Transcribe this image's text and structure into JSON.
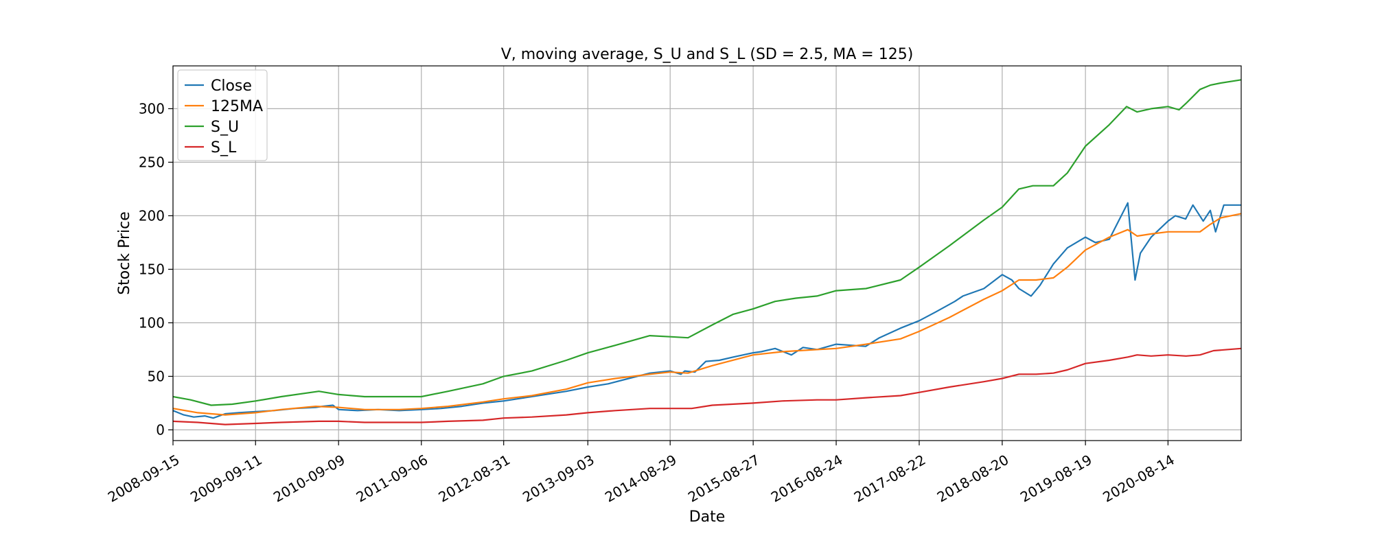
{
  "chart_data": {
    "type": "line",
    "title": "V, moving average, S_U and S_L (SD = 2.5, MA = 125)",
    "xlabel": "Date",
    "ylabel": "Stock Price",
    "xlim": [
      "2008-09-15",
      "2021-06-30"
    ],
    "ylim": [
      -10,
      340
    ],
    "grid": true,
    "legend_position": "upper-left",
    "x_ticks": [
      "2008-09-15",
      "2009-09-11",
      "2010-09-09",
      "2011-09-06",
      "2012-08-31",
      "2013-09-03",
      "2014-08-29",
      "2015-08-27",
      "2016-08-24",
      "2017-08-22",
      "2018-08-20",
      "2019-08-19",
      "2020-08-14"
    ],
    "y_ticks": [
      0,
      50,
      100,
      150,
      200,
      250,
      300
    ],
    "series": [
      {
        "name": "Close",
        "color": "#1f77b4",
        "x": [
          "2008-09-15",
          "2008-11-01",
          "2008-12-15",
          "2009-02-01",
          "2009-03-10",
          "2009-05-01",
          "2009-07-01",
          "2009-09-11",
          "2009-12-01",
          "2010-03-01",
          "2010-06-01",
          "2010-07-01",
          "2010-08-15",
          "2010-09-09",
          "2010-12-01",
          "2011-03-01",
          "2011-06-01",
          "2011-09-06",
          "2011-12-01",
          "2012-03-01",
          "2012-06-01",
          "2012-08-31",
          "2012-12-01",
          "2013-03-01",
          "2013-06-01",
          "2013-09-03",
          "2013-12-01",
          "2014-03-01",
          "2014-06-01",
          "2014-08-29",
          "2014-10-15",
          "2014-11-01",
          "2014-12-15",
          "2015-02-01",
          "2015-04-01",
          "2015-06-01",
          "2015-08-27",
          "2015-10-01",
          "2015-12-01",
          "2016-02-10",
          "2016-04-01",
          "2016-06-01",
          "2016-08-24",
          "2016-11-01",
          "2016-12-31",
          "2017-03-01",
          "2017-06-01",
          "2017-08-22",
          "2017-11-01",
          "2018-01-25",
          "2018-03-01",
          "2018-06-01",
          "2018-08-20",
          "2018-10-01",
          "2018-11-01",
          "2018-12-24",
          "2019-02-01",
          "2019-04-01",
          "2019-06-01",
          "2019-08-19",
          "2019-10-01",
          "2019-12-01",
          "2020-02-20",
          "2020-03-23",
          "2020-04-15",
          "2020-06-01",
          "2020-08-14",
          "2020-09-15",
          "2020-10-30",
          "2020-12-01",
          "2021-01-15",
          "2021-02-15",
          "2021-03-10",
          "2021-04-15",
          "2021-06-30"
        ],
        "values": [
          18,
          14,
          12,
          13,
          11,
          15,
          16,
          17,
          18,
          20,
          21,
          22,
          23,
          19,
          18,
          19,
          18,
          19,
          20,
          22,
          25,
          27,
          30,
          33,
          36,
          40,
          43,
          48,
          53,
          55,
          52,
          55,
          54,
          64,
          65,
          68,
          72,
          73,
          76,
          70,
          77,
          75,
          80,
          79,
          78,
          86,
          95,
          102,
          110,
          120,
          125,
          132,
          145,
          140,
          132,
          125,
          135,
          155,
          170,
          180,
          175,
          178,
          212,
          140,
          165,
          180,
          195,
          200,
          197,
          210,
          195,
          205,
          185,
          210,
          210
        ]
      },
      {
        "name": "125MA",
        "color": "#ff7f0e",
        "x": [
          "2008-09-15",
          "2009-01-01",
          "2009-05-01",
          "2009-09-11",
          "2010-01-01",
          "2010-06-01",
          "2010-09-09",
          "2011-01-01",
          "2011-06-01",
          "2011-09-06",
          "2012-01-01",
          "2012-06-01",
          "2012-08-31",
          "2013-01-01",
          "2013-06-01",
          "2013-09-03",
          "2014-01-01",
          "2014-06-01",
          "2014-08-29",
          "2014-11-15",
          "2015-03-01",
          "2015-08-27",
          "2016-01-01",
          "2016-06-01",
          "2016-08-24",
          "2017-01-01",
          "2017-06-01",
          "2017-08-22",
          "2018-01-01",
          "2018-06-01",
          "2018-08-20",
          "2018-11-01",
          "2019-01-15",
          "2019-04-01",
          "2019-06-01",
          "2019-08-19",
          "2019-12-01",
          "2020-02-20",
          "2020-04-01",
          "2020-06-01",
          "2020-08-14",
          "2020-11-01",
          "2021-01-01",
          "2021-02-15",
          "2021-04-01",
          "2021-06-30"
        ],
        "values": [
          20,
          16,
          14,
          16,
          19,
          22,
          21,
          19,
          19,
          20,
          22,
          26,
          29,
          32,
          38,
          44,
          48,
          52,
          54,
          53,
          60,
          70,
          73,
          75,
          76,
          80,
          85,
          92,
          105,
          122,
          130,
          140,
          140,
          142,
          152,
          168,
          180,
          187,
          181,
          183,
          185,
          185,
          185,
          192,
          198,
          202
        ]
      },
      {
        "name": "S_U",
        "color": "#2ca02c",
        "x": [
          "2008-09-15",
          "2008-12-01",
          "2009-03-01",
          "2009-06-01",
          "2009-09-11",
          "2010-01-01",
          "2010-06-15",
          "2010-09-09",
          "2011-01-01",
          "2011-06-01",
          "2011-09-06",
          "2012-01-01",
          "2012-06-01",
          "2012-08-31",
          "2013-01-01",
          "2013-06-01",
          "2013-09-03",
          "2014-01-01",
          "2014-06-01",
          "2014-08-29",
          "2014-11-15",
          "2015-03-01",
          "2015-06-01",
          "2015-08-27",
          "2015-12-01",
          "2016-03-01",
          "2016-06-01",
          "2016-08-24",
          "2017-01-01",
          "2017-06-01",
          "2017-08-22",
          "2018-01-01",
          "2018-06-01",
          "2018-08-20",
          "2018-11-01",
          "2019-01-01",
          "2019-04-01",
          "2019-06-01",
          "2019-08-19",
          "2019-12-01",
          "2020-02-15",
          "2020-04-01",
          "2020-06-01",
          "2020-08-14",
          "2020-10-01",
          "2020-11-01",
          "2021-01-01",
          "2021-02-15",
          "2021-04-01",
          "2021-06-30"
        ],
        "values": [
          31,
          28,
          23,
          24,
          27,
          31,
          36,
          33,
          31,
          31,
          31,
          36,
          43,
          50,
          55,
          65,
          72,
          79,
          88,
          87,
          86,
          98,
          108,
          113,
          120,
          123,
          125,
          130,
          132,
          140,
          152,
          172,
          196,
          208,
          225,
          228,
          228,
          240,
          265,
          285,
          302,
          297,
          300,
          302,
          299,
          305,
          318,
          322,
          324,
          327
        ]
      },
      {
        "name": "S_L",
        "color": "#d62728",
        "x": [
          "2008-09-15",
          "2009-01-01",
          "2009-05-01",
          "2009-09-11",
          "2010-01-01",
          "2010-06-15",
          "2010-09-09",
          "2011-01-01",
          "2011-06-01",
          "2011-09-06",
          "2012-01-01",
          "2012-06-01",
          "2012-08-31",
          "2013-01-01",
          "2013-06-01",
          "2013-09-03",
          "2014-01-01",
          "2014-06-01",
          "2014-08-29",
          "2014-12-01",
          "2015-03-01",
          "2015-08-27",
          "2016-01-01",
          "2016-06-01",
          "2016-08-24",
          "2017-01-01",
          "2017-06-01",
          "2017-08-22",
          "2018-01-01",
          "2018-06-01",
          "2018-08-20",
          "2018-11-01",
          "2019-01-15",
          "2019-04-01",
          "2019-06-01",
          "2019-08-19",
          "2019-12-01",
          "2020-02-20",
          "2020-04-01",
          "2020-06-01",
          "2020-08-14",
          "2020-11-01",
          "2021-01-01",
          "2021-03-01",
          "2021-06-30"
        ],
        "values": [
          8,
          7,
          5,
          6,
          7,
          8,
          8,
          7,
          7,
          7,
          8,
          9,
          11,
          12,
          14,
          16,
          18,
          20,
          20,
          20,
          23,
          25,
          27,
          28,
          28,
          30,
          32,
          35,
          40,
          45,
          48,
          52,
          52,
          53,
          56,
          62,
          65,
          68,
          70,
          69,
          70,
          69,
          70,
          74,
          76
        ]
      }
    ]
  }
}
